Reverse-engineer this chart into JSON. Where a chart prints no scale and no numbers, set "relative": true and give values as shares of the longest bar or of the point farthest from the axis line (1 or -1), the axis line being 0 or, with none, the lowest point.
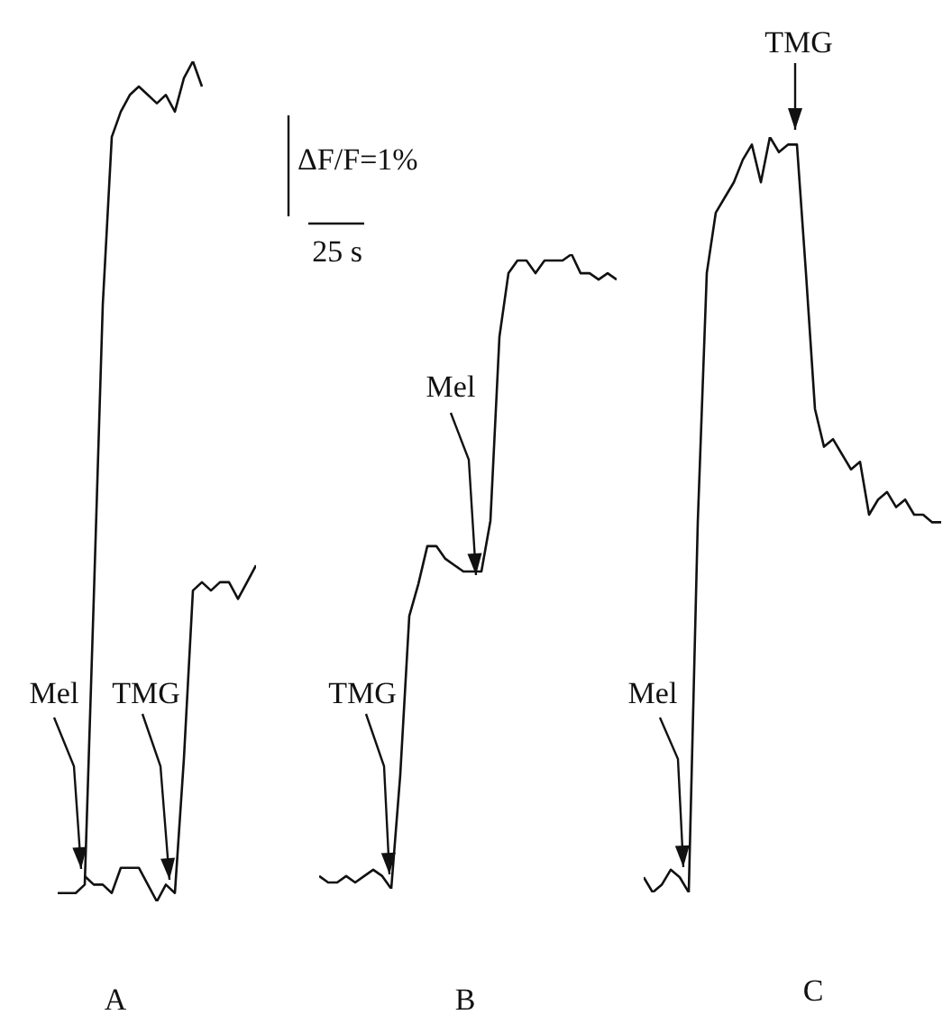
{
  "chart_data": [
    {
      "type": "line",
      "relative": true,
      "marker": "none",
      "line_style": "solid",
      "categories": [
        null,
        null,
        null,
        null,
        null,
        null,
        null,
        null,
        null,
        null,
        null,
        null,
        null,
        null,
        null,
        null,
        null,
        null,
        null,
        null,
        null,
        null,
        null
      ],
      "series": [
        {
          "color": "#111111",
          "values": [
            0.01,
            0.01,
            0.01,
            0.02,
            0.36,
            0.71,
            0.91,
            0.94,
            0.96,
            0.97,
            0.96,
            0.95,
            0.96,
            0.94,
            0.98,
            1,
            0.97,
            null,
            null,
            null,
            null,
            null,
            null
          ]
        },
        {
          "color": "#111111",
          "values": [
            null,
            null,
            null,
            0.03,
            0.02,
            0.02,
            0.01,
            0.04,
            0.04,
            0.04,
            0.02,
            0,
            0.02,
            0.01,
            0.17,
            0.37,
            0.38,
            0.37,
            0.38,
            0.38,
            0.36,
            0.38,
            0.4
          ]
        }
      ],
      "annotations": [
        "Mel",
        "TMG",
        "ΔF/F=1%",
        "25 s",
        "A"
      ]
    },
    {
      "type": "line",
      "relative": true,
      "marker": "none",
      "line_style": "solid",
      "categories": [
        null,
        null,
        null,
        null,
        null,
        null,
        null,
        null,
        null,
        null,
        null,
        null,
        null,
        null,
        null,
        null,
        null,
        null,
        null,
        null,
        null,
        null,
        null,
        null,
        null,
        null,
        null,
        null,
        null,
        null,
        null,
        null,
        null,
        null
      ],
      "series": [
        {
          "color": "#111111",
          "values": [
            0.02,
            0.01,
            0.01,
            0.02,
            0.01,
            0.02,
            0.03,
            0.02,
            0,
            0.18,
            0.43,
            0.48,
            0.54,
            0.54,
            0.52,
            0.51,
            0.5,
            0.5,
            0.5,
            0.58,
            0.87,
            0.97,
            0.99,
            0.99,
            0.97,
            0.99,
            0.99,
            0.99,
            1,
            0.97,
            0.97,
            0.96,
            0.97,
            0.96
          ]
        }
      ],
      "annotations": [
        "TMG",
        "Mel",
        "B"
      ]
    },
    {
      "type": "line",
      "relative": true,
      "marker": "none",
      "line_style": "solid",
      "categories": [
        null,
        null,
        null,
        null,
        null,
        null,
        null,
        null,
        null,
        null,
        null,
        null,
        null,
        null,
        null,
        null,
        null,
        null,
        null,
        null,
        null,
        null,
        null,
        null,
        null,
        null,
        null,
        null,
        null,
        null,
        null,
        null,
        null,
        null
      ],
      "series": [
        {
          "color": "#111111",
          "values": [
            0.02,
            0,
            0.01,
            0.03,
            0.02,
            0,
            0.49,
            0.82,
            0.9,
            0.92,
            0.94,
            0.97,
            0.99,
            0.94,
            1,
            0.98,
            0.99,
            0.99,
            0.82,
            0.64,
            0.59,
            0.6,
            0.58,
            0.56,
            0.57,
            0.5,
            0.52,
            0.53,
            0.51,
            0.52,
            0.5,
            0.5,
            0.49,
            0.49
          ]
        }
      ],
      "annotations": [
        "TMG",
        "Mel",
        "C"
      ]
    }
  ]
}
